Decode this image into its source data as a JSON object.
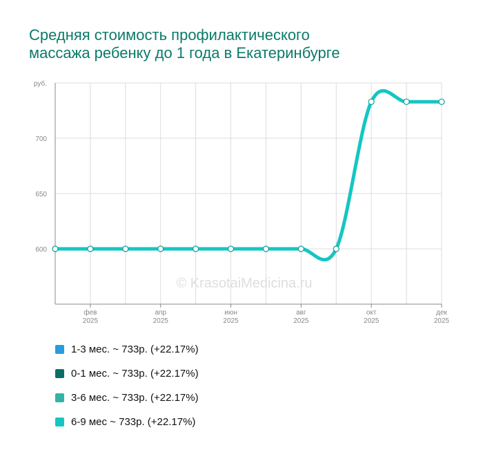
{
  "title_lines": [
    "Средняя стоимость профилактического",
    "массажа ребенку до 1 года в Екатеринбурге"
  ],
  "watermark": "© KrasotaiMedicina.ru",
  "legend": [
    {
      "label": "1-3 мес. ~ 733р. (+22.17%)",
      "color": "#2a9be0"
    },
    {
      "label": "0-1 мес. ~ 733р. (+22.17%)",
      "color": "#0b6e66"
    },
    {
      "label": "3-6 мес. ~ 733р. (+22.17%)",
      "color": "#34b2a5"
    },
    {
      "label": "6-9 мес ~ 733р. (+22.17%)",
      "color": "#14c6c3"
    }
  ],
  "chart_data": {
    "type": "line",
    "ylabel": "руб.",
    "ylim": [
      550,
      750
    ],
    "yticks": [
      600,
      650,
      700
    ],
    "x_labels": [
      {
        "month": "фев",
        "year": "2025"
      },
      {
        "month": "апр",
        "year": "2025"
      },
      {
        "month": "июн",
        "year": "2025"
      },
      {
        "month": "авг",
        "year": "2025"
      },
      {
        "month": "окт",
        "year": "2025"
      },
      {
        "month": "дек",
        "year": "2025"
      }
    ],
    "x_label_points": [
      1,
      3,
      5,
      7,
      9,
      11
    ],
    "grid": true,
    "line_color": "#14c6c3",
    "series": [
      {
        "name": "6-9 мес",
        "values": [
          600,
          600,
          600,
          600,
          600,
          600,
          600,
          600,
          600,
          733,
          733,
          733
        ]
      }
    ]
  }
}
